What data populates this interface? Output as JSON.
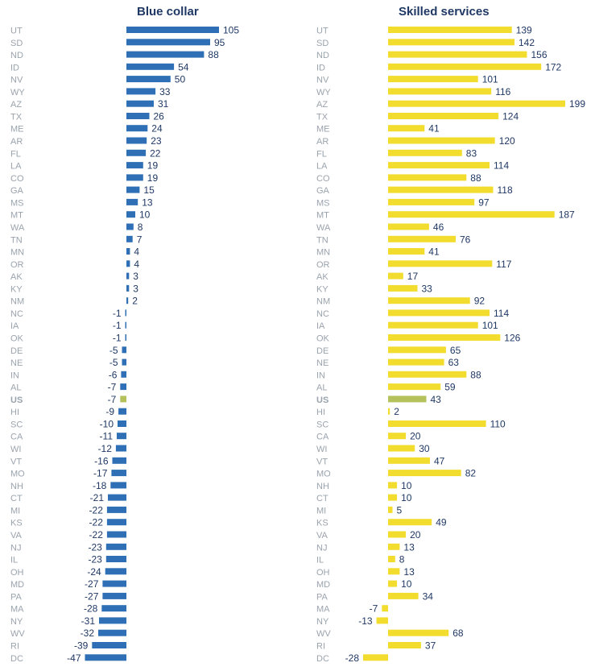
{
  "colors": {
    "blue": "#2e6fb5",
    "yellow": "#f2dc2e",
    "us": "#b5c25c",
    "state_label": "#9aa3ad",
    "value_label": "#1f3864"
  },
  "chart_data": [
    {
      "type": "bar",
      "title": "Blue collar",
      "orientation": "horizontal",
      "categories": [
        "UT",
        "SD",
        "ND",
        "ID",
        "NV",
        "WY",
        "AZ",
        "TX",
        "ME",
        "AR",
        "FL",
        "LA",
        "CO",
        "GA",
        "MS",
        "MT",
        "WA",
        "TN",
        "MN",
        "OR",
        "AK",
        "KY",
        "NM",
        "NC",
        "IA",
        "OK",
        "DE",
        "NE",
        "IN",
        "AL",
        "US",
        "HI",
        "SC",
        "CA",
        "WI",
        "VT",
        "MO",
        "NH",
        "CT",
        "MI",
        "KS",
        "VA",
        "NJ",
        "IL",
        "OH",
        "MD",
        "PA",
        "MA",
        "NY",
        "WV",
        "RI",
        "DC"
      ],
      "values": [
        105,
        95,
        88,
        54,
        50,
        33,
        31,
        26,
        24,
        23,
        22,
        19,
        19,
        15,
        13,
        10,
        8,
        7,
        4,
        4,
        3,
        3,
        2,
        -1,
        -1,
        -1,
        -5,
        -5,
        -6,
        -7,
        -7,
        -9,
        -10,
        -11,
        -12,
        -16,
        -17,
        -18,
        -21,
        -22,
        -22,
        -22,
        -23,
        -23,
        -24,
        -27,
        -27,
        -28,
        -31,
        -32,
        -39,
        -47
      ],
      "highlight": "US"
    },
    {
      "type": "bar",
      "title": "Skilled services",
      "orientation": "horizontal",
      "categories": [
        "UT",
        "SD",
        "ND",
        "ID",
        "NV",
        "WY",
        "AZ",
        "TX",
        "ME",
        "AR",
        "FL",
        "LA",
        "CO",
        "GA",
        "MS",
        "MT",
        "WA",
        "TN",
        "MN",
        "OR",
        "AK",
        "KY",
        "NM",
        "NC",
        "IA",
        "OK",
        "DE",
        "NE",
        "IN",
        "AL",
        "US",
        "HI",
        "SC",
        "CA",
        "WI",
        "VT",
        "MO",
        "NH",
        "CT",
        "MI",
        "KS",
        "VA",
        "NJ",
        "IL",
        "OH",
        "MD",
        "PA",
        "MA",
        "NY",
        "WV",
        "RI",
        "DC"
      ],
      "values": [
        139,
        142,
        156,
        172,
        101,
        116,
        199,
        124,
        41,
        120,
        83,
        114,
        88,
        118,
        97,
        187,
        46,
        76,
        41,
        117,
        17,
        33,
        92,
        114,
        101,
        126,
        65,
        63,
        88,
        59,
        43,
        2,
        110,
        20,
        30,
        47,
        82,
        10,
        10,
        5,
        49,
        20,
        13,
        8,
        13,
        10,
        34,
        -7,
        -13,
        68,
        37,
        -28
      ],
      "highlight": "US"
    }
  ]
}
